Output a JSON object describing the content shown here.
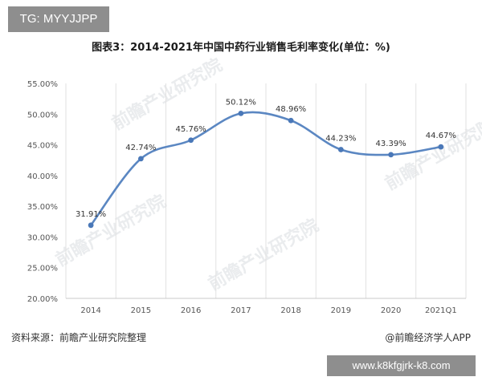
{
  "header": {
    "tag_badge": "TG: MYYJJPP"
  },
  "footer": {
    "source": "资料来源：前瞻产业研究院整理",
    "brand": "@前瞻经济学人APP",
    "url_badge": "www.k8kfgjrk-k8.com"
  },
  "watermarks": [
    "前瞻产业研究院",
    "前瞻产业研究院",
    "前瞻产业研究院",
    "前瞻产业研究院"
  ],
  "colors": {
    "line": "#5b87c2",
    "point": "#4a78b8",
    "grid": "#e2e2e2",
    "axis": "#c8c8c8",
    "tick_text": "#555555",
    "label_text": "#333333"
  },
  "chart_data": {
    "type": "line",
    "title": "图表3：2014-2021年中国中药行业销售毛利率变化(单位：%)",
    "xlabel": "",
    "ylabel": "",
    "categories": [
      "2014",
      "2015",
      "2016",
      "2017",
      "2018",
      "2019",
      "2020",
      "2021Q1"
    ],
    "series": [
      {
        "values": [
          31.91,
          42.74,
          45.76,
          50.12,
          48.96,
          44.23,
          43.39,
          44.67
        ],
        "data_labels": [
          "31.91%",
          "42.74%",
          "45.76%",
          "50.12%",
          "48.96%",
          "44.23%",
          "43.39%",
          "44.67%"
        ]
      }
    ],
    "ylim": [
      20,
      55
    ],
    "yticks": [
      20,
      25,
      30,
      35,
      40,
      45,
      50,
      55
    ],
    "ytick_labels": [
      "20.00%",
      "25.00%",
      "30.00%",
      "35.00%",
      "40.00%",
      "45.00%",
      "50.00%",
      "55.00%"
    ],
    "grid": "vertical",
    "smooth": true,
    "legend": "none"
  }
}
